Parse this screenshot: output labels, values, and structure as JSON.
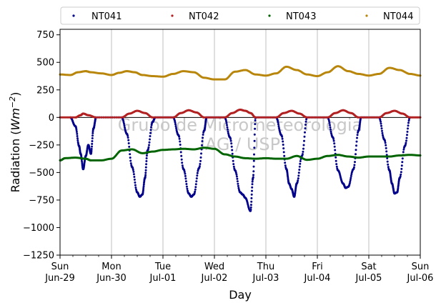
{
  "chart_data": {
    "type": "scatter",
    "xlabel": "Day",
    "ylabel_main": "Radiation (",
    "ylabel_unit": "Wm",
    "ylabel_exp": "−2",
    "ylabel_close": ")",
    "ylim": [
      -1250,
      800
    ],
    "yticks": [
      "−1250",
      "−1000",
      "−750",
      "−500",
      "−250",
      "0",
      "250",
      "500",
      "750"
    ],
    "ytick_values": [
      -1250,
      -1000,
      -750,
      -500,
      -250,
      0,
      250,
      500,
      750
    ],
    "xlim": [
      0,
      7
    ],
    "xticks": [
      {
        "day": "Sun",
        "date": "Jun-29"
      },
      {
        "day": "Mon",
        "date": "Jun-30"
      },
      {
        "day": "Tue",
        "date": "Jul-01"
      },
      {
        "day": "Wed",
        "date": "Jul-02"
      },
      {
        "day": "Thu",
        "date": "Jul-03"
      },
      {
        "day": "Fri",
        "date": "Jul-04"
      },
      {
        "day": "Sat",
        "date": "Jul-05"
      },
      {
        "day": "Sun",
        "date": "Jul-06"
      }
    ],
    "grid": "vertical",
    "legend_position": "top",
    "zero_line": true,
    "watermark": [
      "Grupo de Micrometeorologia",
      "IAG / USP"
    ],
    "series": [
      {
        "name": "NT041",
        "color": "#00008b",
        "x": [
          0.2,
          0.3,
          0.37,
          0.4,
          0.45,
          0.5,
          0.55,
          0.6,
          0.65,
          0.7,
          1.2,
          1.3,
          1.4,
          1.5,
          1.55,
          1.6,
          1.65,
          1.7,
          1.8,
          1.85,
          2.2,
          2.3,
          2.4,
          2.5,
          2.55,
          2.6,
          2.7,
          2.8,
          2.85,
          3.2,
          3.3,
          3.4,
          3.5,
          3.55,
          3.6,
          3.7,
          3.75,
          3.8,
          4.2,
          4.3,
          4.4,
          4.45,
          4.5,
          4.55,
          4.6,
          4.7,
          4.8,
          5.2,
          5.3,
          5.4,
          5.5,
          5.55,
          5.6,
          5.7,
          5.8,
          5.85,
          6.2,
          6.3,
          6.4,
          6.45,
          6.5,
          6.55,
          6.6,
          6.7,
          6.8
        ],
        "y": [
          0,
          -80,
          -260,
          -330,
          -470,
          -350,
          -250,
          -330,
          -100,
          0,
          0,
          -150,
          -450,
          -680,
          -720,
          -700,
          -550,
          -300,
          -40,
          0,
          0,
          -160,
          -470,
          -690,
          -720,
          -700,
          -460,
          -120,
          0,
          0,
          -180,
          -480,
          -680,
          -700,
          -730,
          -850,
          -550,
          0,
          0,
          -160,
          -470,
          -600,
          -650,
          -720,
          -600,
          -350,
          0,
          0,
          -180,
          -480,
          -600,
          -640,
          -630,
          -470,
          -120,
          0,
          0,
          -200,
          -480,
          -600,
          -690,
          -680,
          -550,
          -260,
          0
        ]
      },
      {
        "name": "NT042",
        "color": "#b22222",
        "x": [
          0.0,
          0.3,
          0.4,
          0.45,
          0.55,
          0.7,
          1.2,
          1.35,
          1.5,
          1.65,
          1.8,
          2.2,
          2.35,
          2.5,
          2.65,
          2.8,
          3.2,
          3.35,
          3.5,
          3.6,
          3.7,
          3.8,
          4.2,
          4.35,
          4.5,
          4.65,
          4.8,
          5.2,
          5.35,
          5.5,
          5.65,
          5.8,
          6.2,
          6.35,
          6.5,
          6.65,
          6.8,
          7.0
        ],
        "y": [
          0,
          0,
          20,
          35,
          20,
          0,
          0,
          35,
          60,
          40,
          0,
          0,
          40,
          65,
          45,
          0,
          0,
          40,
          70,
          60,
          40,
          0,
          0,
          40,
          60,
          35,
          0,
          0,
          40,
          65,
          40,
          0,
          0,
          40,
          60,
          35,
          0,
          0
        ]
      },
      {
        "name": "NT043",
        "color": "#006400",
        "x": [
          0.0,
          0.1,
          0.3,
          0.5,
          0.6,
          0.8,
          1.0,
          1.2,
          1.4,
          1.6,
          1.8,
          2.0,
          2.2,
          2.4,
          2.6,
          2.8,
          3.0,
          3.2,
          3.4,
          3.6,
          3.8,
          4.0,
          4.2,
          4.4,
          4.6,
          4.8,
          5.0,
          5.2,
          5.4,
          5.6,
          5.8,
          6.0,
          6.2,
          6.4,
          6.6,
          6.8,
          7.0
        ],
        "y": [
          -390,
          -370,
          -365,
          -375,
          -390,
          -390,
          -375,
          -300,
          -290,
          -325,
          -310,
          -295,
          -290,
          -285,
          -290,
          -275,
          -285,
          -335,
          -355,
          -370,
          -375,
          -370,
          -375,
          -375,
          -350,
          -385,
          -375,
          -350,
          -340,
          -355,
          -365,
          -355,
          -355,
          -355,
          -345,
          -340,
          -345
        ]
      },
      {
        "name": "NT044",
        "color": "#b8860b",
        "x": [
          0.0,
          0.2,
          0.35,
          0.5,
          0.6,
          0.8,
          1.0,
          1.15,
          1.3,
          1.45,
          1.6,
          1.8,
          2.0,
          2.2,
          2.4,
          2.6,
          2.8,
          3.0,
          3.2,
          3.4,
          3.6,
          3.8,
          4.0,
          4.2,
          4.4,
          4.6,
          4.8,
          5.0,
          5.2,
          5.4,
          5.6,
          5.8,
          6.0,
          6.2,
          6.4,
          6.6,
          6.8,
          7.0
        ],
        "y": [
          390,
          385,
          410,
          420,
          410,
          400,
          385,
          405,
          420,
          410,
          385,
          375,
          370,
          395,
          420,
          410,
          360,
          345,
          345,
          415,
          430,
          390,
          380,
          400,
          460,
          430,
          390,
          375,
          410,
          465,
          420,
          395,
          380,
          395,
          450,
          430,
          395,
          380
        ]
      }
    ]
  }
}
